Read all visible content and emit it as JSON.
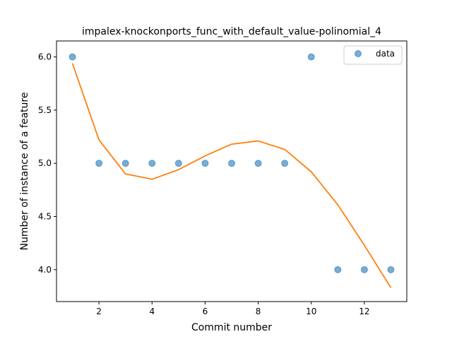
{
  "chart_data": {
    "type": "scatter",
    "title": "impalex-knockonports_func_with_default_value-polinomial_4",
    "xlabel": "Commit number",
    "ylabel": "Number of instance of a feature",
    "xlim": [
      0.4,
      13.6
    ],
    "ylim": [
      3.7,
      6.15
    ],
    "xticks": [
      2,
      4,
      6,
      8,
      10,
      12
    ],
    "yticks": [
      4.0,
      4.5,
      5.0,
      5.5,
      6.0
    ],
    "xtick_labels": [
      "2",
      "4",
      "6",
      "8",
      "10",
      "12"
    ],
    "ytick_labels": [
      "4.0",
      "4.5",
      "5.0",
      "5.5",
      "6.0"
    ],
    "legend_position": "top-right",
    "series": [
      {
        "name": "data",
        "kind": "scatter",
        "color": "#1f77b4",
        "x": [
          1,
          2,
          3,
          4,
          5,
          6,
          7,
          8,
          9,
          10,
          11,
          12,
          13
        ],
        "y": [
          6.0,
          5.0,
          5.0,
          5.0,
          5.0,
          5.0,
          5.0,
          5.0,
          5.0,
          6.0,
          4.0,
          4.0,
          4.0
        ]
      },
      {
        "kind": "line",
        "color": "#ff7f0e",
        "x": [
          1,
          2,
          3,
          4,
          5,
          6,
          7,
          8,
          9,
          10,
          11,
          12,
          13
        ],
        "y": [
          5.94,
          5.22,
          4.9,
          4.85,
          4.94,
          5.07,
          5.18,
          5.21,
          5.13,
          4.92,
          4.61,
          4.23,
          3.83
        ]
      }
    ]
  }
}
